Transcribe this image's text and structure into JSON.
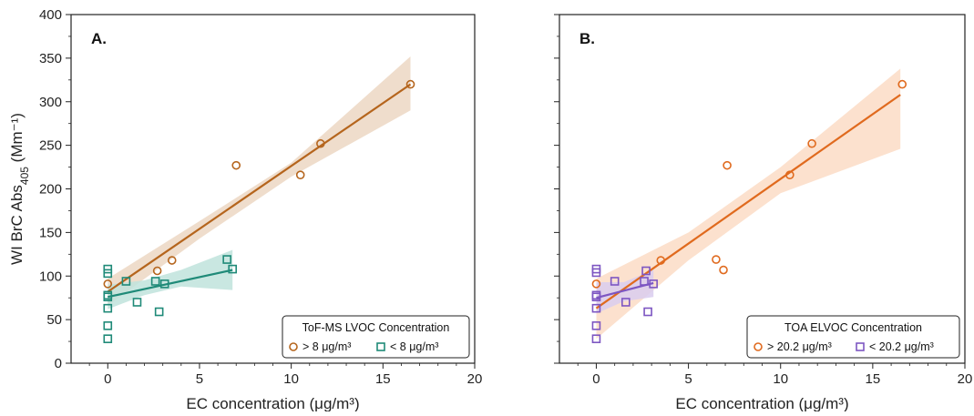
{
  "chart_data": [
    {
      "type": "scatter",
      "panel_label": "A.",
      "xlabel": "EC concentration (μg/m³)",
      "ylabel": "WI BrC Abs405 (Mm⁻¹)",
      "xlim": [
        -2,
        20
      ],
      "ylim": [
        0,
        400
      ],
      "x_ticks": [
        "0",
        "5",
        "10",
        "15",
        "20"
      ],
      "y_ticks": [
        "0",
        "50",
        "100",
        "150",
        "200",
        "250",
        "300",
        "350",
        "400"
      ],
      "legend": {
        "title": "ToF-MS LVOC Concentration",
        "placement": "bottom-right"
      },
      "series": [
        {
          "name": "> 8 μg/m³",
          "marker": "circle",
          "color": "#b5651d",
          "band_color": "#ecd7c3",
          "points": [
            [
              0,
              91
            ],
            [
              2.7,
              106
            ],
            [
              3.5,
              118
            ],
            [
              7.0,
              227
            ],
            [
              10.5,
              216
            ],
            [
              11.6,
              252
            ],
            [
              16.5,
              320
            ]
          ],
          "fit": [
            [
              0,
              82
            ],
            [
              16.5,
              320
            ]
          ],
          "band_upper": [
            [
              0,
              97
            ],
            [
              5,
              163
            ],
            [
              10,
              230
            ],
            [
              16.5,
              352
            ]
          ],
          "band_lower": [
            [
              0,
              66
            ],
            [
              5,
              143
            ],
            [
              10,
              214
            ],
            [
              16.5,
              290
            ]
          ]
        },
        {
          "name": "< 8 μg/m³",
          "marker": "square",
          "color": "#1f8a78",
          "band_color": "#bfe3dc",
          "points": [
            [
              0,
              108
            ],
            [
              0,
              103
            ],
            [
              0,
              78
            ],
            [
              0,
              76
            ],
            [
              0,
              63
            ],
            [
              0,
              43
            ],
            [
              0,
              28
            ],
            [
              1.0,
              94
            ],
            [
              1.6,
              70
            ],
            [
              2.6,
              94
            ],
            [
              2.8,
              59
            ],
            [
              3.1,
              91
            ],
            [
              6.5,
              119
            ],
            [
              6.8,
              108
            ]
          ],
          "fit": [
            [
              0,
              76
            ],
            [
              6.8,
              107
            ]
          ],
          "band_upper": [
            [
              0,
              90
            ],
            [
              2,
              95
            ],
            [
              4,
              107
            ],
            [
              6.8,
              130
            ]
          ],
          "band_lower": [
            [
              0,
              62
            ],
            [
              2,
              78
            ],
            [
              4,
              88
            ],
            [
              6.8,
              84
            ]
          ]
        }
      ]
    },
    {
      "type": "scatter",
      "panel_label": "B.",
      "xlabel": "EC concentration (μg/m³)",
      "ylabel": "",
      "xlim": [
        -2,
        20
      ],
      "ylim": [
        0,
        400
      ],
      "x_ticks": [
        "0",
        "5",
        "10",
        "15",
        "20"
      ],
      "y_ticks": [],
      "legend": {
        "title": "TOA ELVOC Concentration",
        "placement": "bottom-right"
      },
      "series": [
        {
          "name": "> 20.2 μg/m³",
          "marker": "circle",
          "color": "#e06a1e",
          "band_color": "#fbdcc6",
          "points": [
            [
              0,
              91
            ],
            [
              3.5,
              118
            ],
            [
              6.5,
              119
            ],
            [
              6.9,
              107
            ],
            [
              7.1,
              227
            ],
            [
              10.5,
              216
            ],
            [
              11.7,
              252
            ],
            [
              16.6,
              320
            ]
          ],
          "fit": [
            [
              0,
              63
            ],
            [
              16.5,
              308
            ]
          ],
          "band_upper": [
            [
              0,
              97
            ],
            [
              5,
              150
            ],
            [
              10,
              225
            ],
            [
              16.5,
              338
            ]
          ],
          "band_lower": [
            [
              0,
              28
            ],
            [
              5,
              118
            ],
            [
              10,
              195
            ],
            [
              16.5,
              246
            ]
          ]
        },
        {
          "name": "< 20.2 μg/m³",
          "marker": "square",
          "color": "#7d56c2",
          "band_color": "#d9ccef",
          "points": [
            [
              0,
              108
            ],
            [
              0,
              104
            ],
            [
              0,
              78
            ],
            [
              0,
              76
            ],
            [
              0,
              63
            ],
            [
              0,
              43
            ],
            [
              0,
              28
            ],
            [
              1.0,
              94
            ],
            [
              1.6,
              70
            ],
            [
              2.6,
              94
            ],
            [
              2.7,
              106
            ],
            [
              2.8,
              59
            ],
            [
              3.1,
              91
            ]
          ],
          "fit": [
            [
              0,
              75
            ],
            [
              3.1,
              92
            ]
          ],
          "band_upper": [
            [
              0,
              93
            ],
            [
              1.5,
              93
            ],
            [
              3.1,
              107
            ]
          ],
          "band_lower": [
            [
              0,
              57
            ],
            [
              1.5,
              71
            ],
            [
              3.1,
              76
            ]
          ]
        }
      ]
    }
  ]
}
